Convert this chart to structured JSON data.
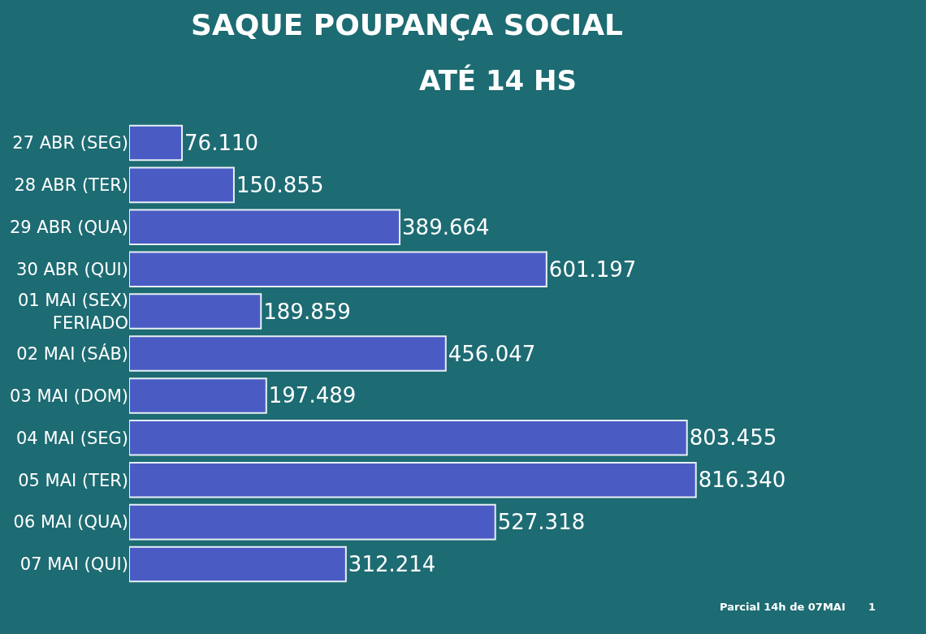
{
  "chart_data": {
    "type": "bar",
    "orientation": "horizontal",
    "title": "SAQUE POUPANÇA SOCIAL",
    "subtitle": "ATÉ 14 HS",
    "categories": [
      "27 ABR (SEG)",
      "28 ABR (TER)",
      "29 ABR (QUA)",
      "30 ABR (QUI)",
      "01 MAI (SEX)\nFERIADO",
      "02 MAI (SÁB)",
      "03 MAI (DOM)",
      "04 MAI (SEG)",
      "05 MAI (TER)",
      "06 MAI (QUA)",
      "07 MAI (QUI)"
    ],
    "values": [
      76110,
      150855,
      389664,
      601197,
      189859,
      456047,
      197489,
      803455,
      816340,
      527318,
      312214
    ],
    "value_labels": [
      "76.110",
      "150.855",
      "389.664",
      "601.197",
      "189.859",
      "456.047",
      "197.489",
      "803.455",
      "816.340",
      "527.318",
      "312.214"
    ],
    "color": "#4a5cc4",
    "annotations": [
      "Parcial 14h de 07MAI",
      "1"
    ],
    "grid": false,
    "legend": false
  }
}
